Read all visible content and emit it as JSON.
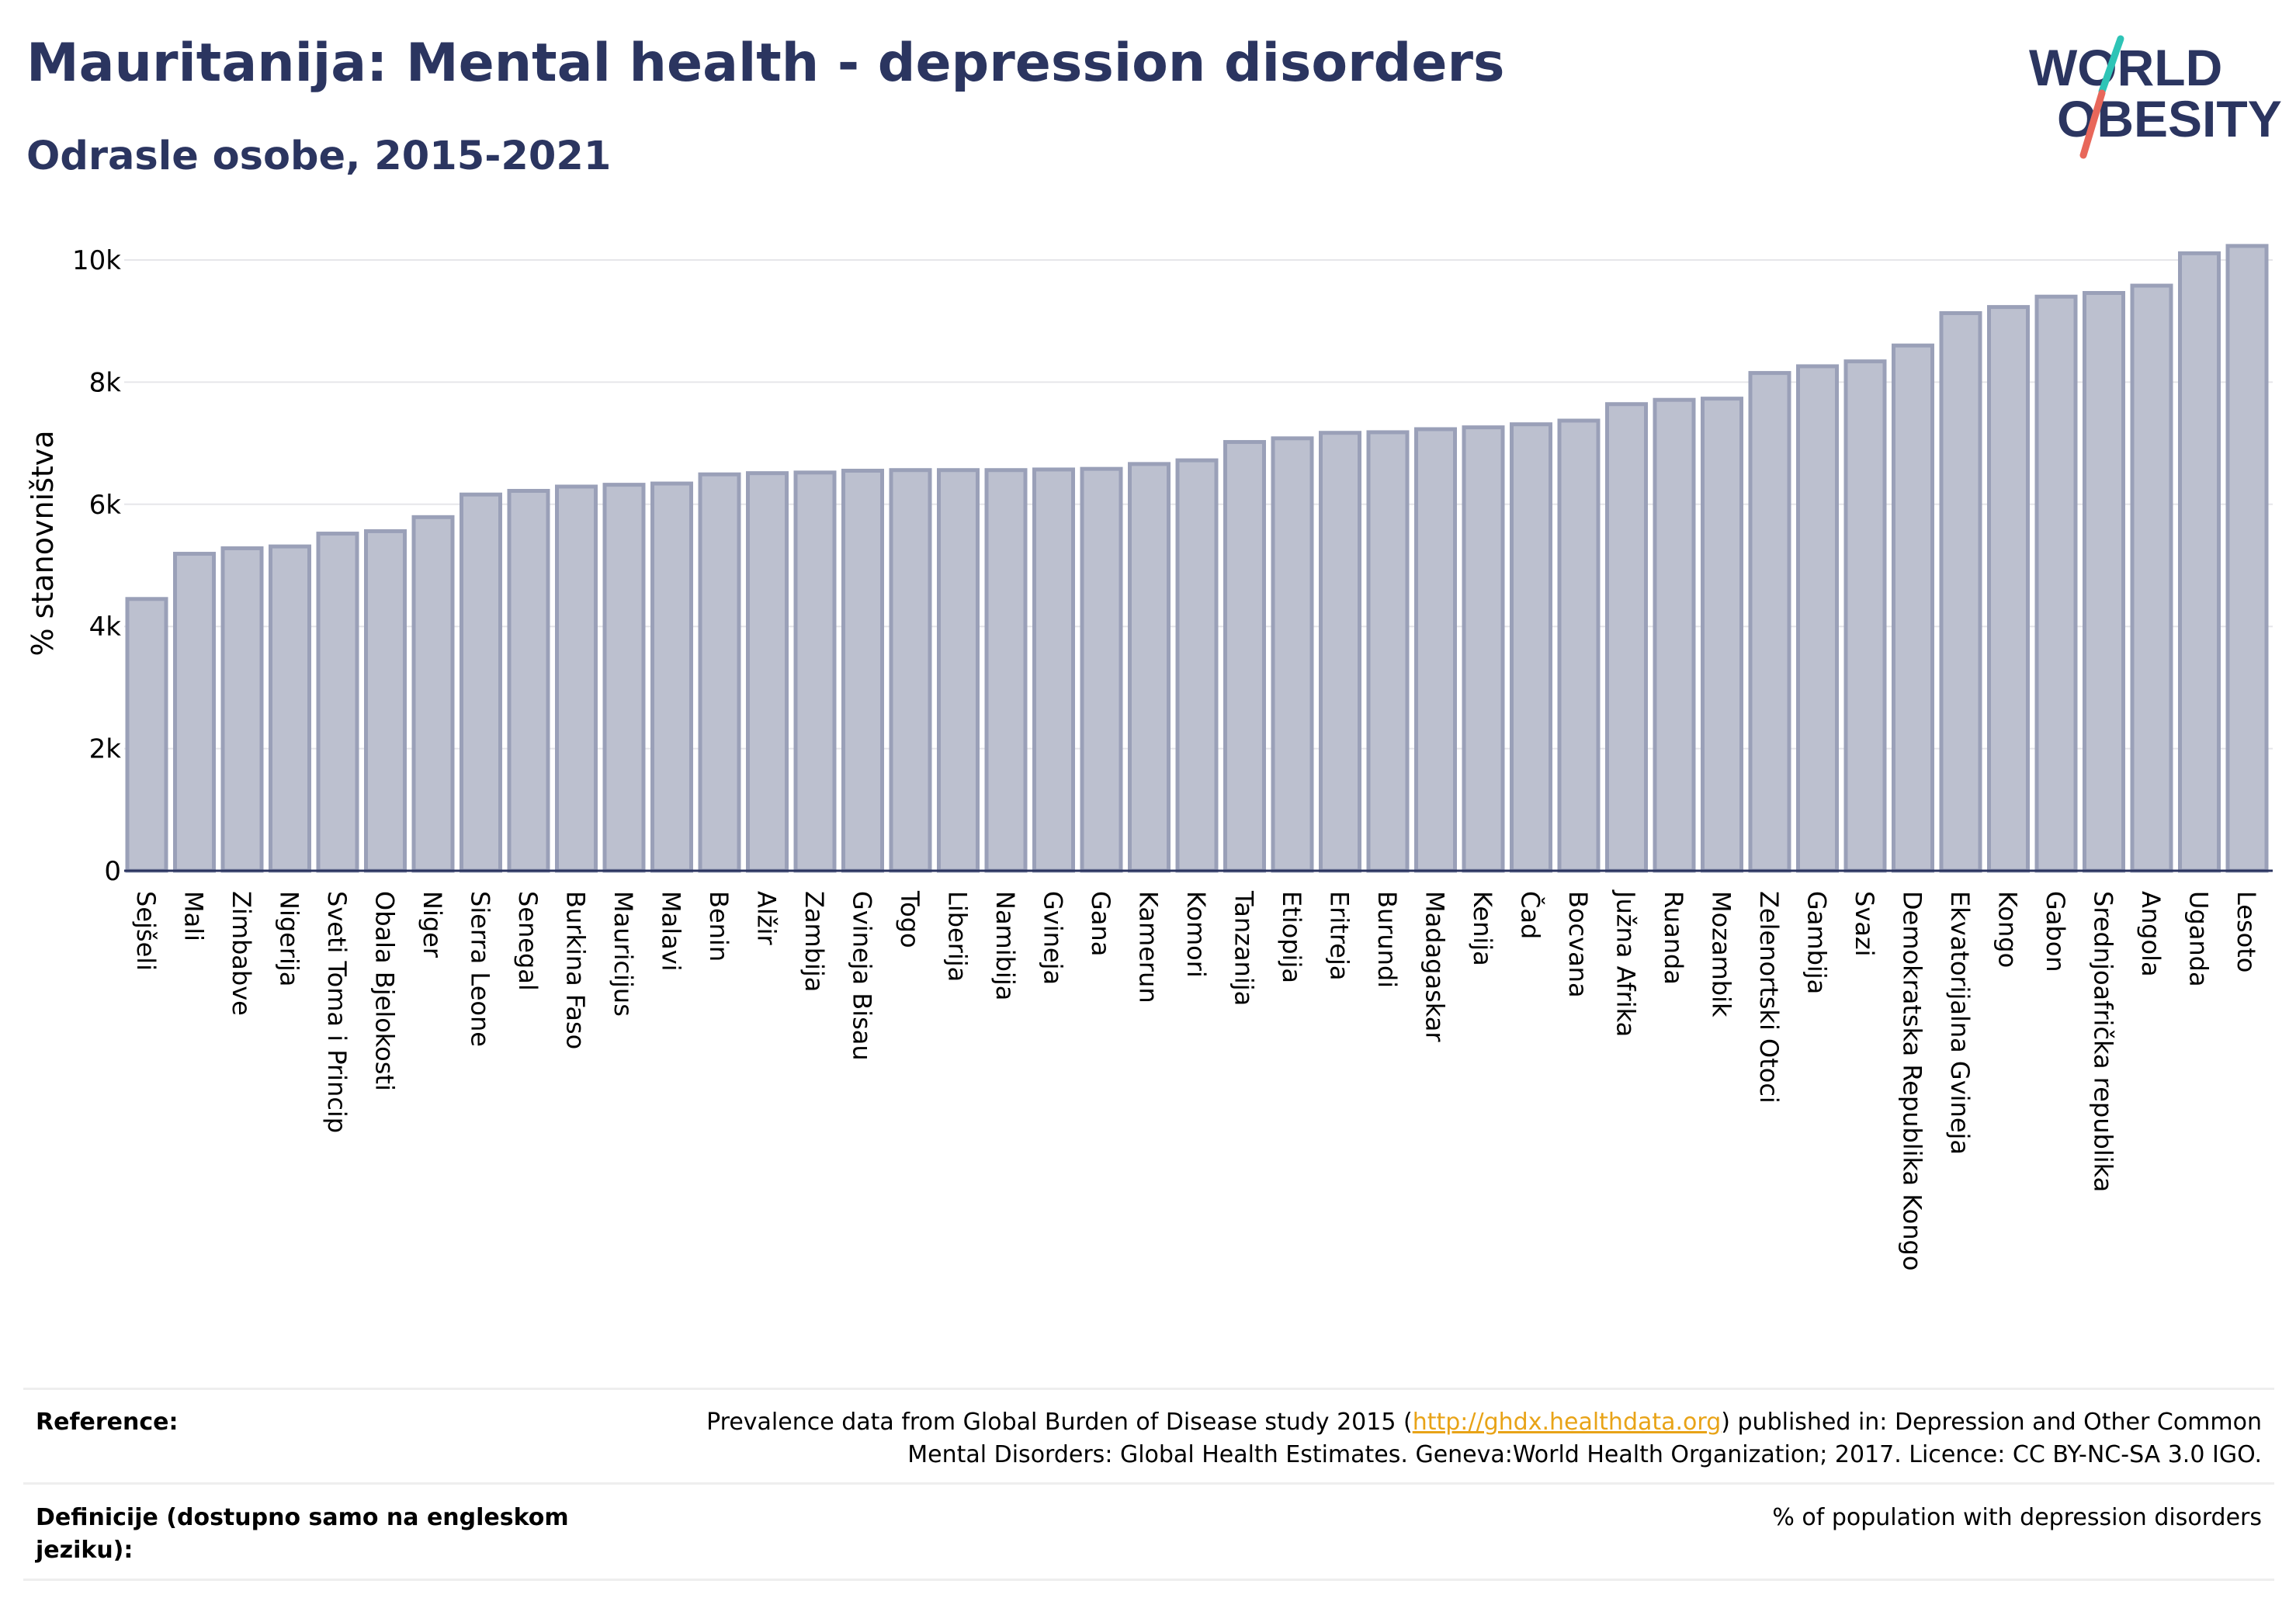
{
  "header": {
    "title": "Mauritanija: Mental health - depression disorders",
    "subtitle": "Odrasle osobe, 2015-2021"
  },
  "logo": {
    "line1": "WORLD",
    "line2": "OBESITY"
  },
  "chart_data": {
    "type": "bar",
    "ylabel": "% stanovništva",
    "ylim": [
      0,
      10300
    ],
    "yticks": [
      0,
      2000,
      4000,
      6000,
      8000,
      10000
    ],
    "ytick_labels": [
      "0",
      "2k",
      "4k",
      "6k",
      "8k",
      "10k"
    ],
    "grid": true,
    "bar_color": "#bcc0cf",
    "bar_edge_color": "#9aa0b8",
    "categories": [
      "Sejšeli",
      "Mali",
      "Zimbabve",
      "Nigerija",
      "Sveti Toma i Princip",
      "Obala Bjelokosti",
      "Niger",
      "Sierra Leone",
      "Senegal",
      "Burkina Faso",
      "Mauricijus",
      "Malavi",
      "Benin",
      "Alžir",
      "Zambija",
      "Gvineja Bisau",
      "Togo",
      "Liberija",
      "Namibija",
      "Gvineja",
      "Gana",
      "Kamerun",
      "Komori",
      "Tanzanija",
      "Etiopija",
      "Eritreja",
      "Burundi",
      "Madagaskar",
      "Kenija",
      "Čad",
      "Bocvana",
      "Južna Afrika",
      "Ruanda",
      "Mozambik",
      "Zelenortski Otoci",
      "Gambija",
      "Svazi",
      "Demokratska Republika Kongo",
      "Ekvatorijalna Gvineja",
      "Kongo",
      "Gabon",
      "Srednjoafrička republika",
      "Angola",
      "Uganda",
      "Lesoto"
    ],
    "values": [
      4450,
      5190,
      5280,
      5310,
      5520,
      5560,
      5790,
      6160,
      6220,
      6290,
      6320,
      6340,
      6490,
      6510,
      6520,
      6550,
      6560,
      6560,
      6560,
      6570,
      6580,
      6660,
      6720,
      7020,
      7080,
      7170,
      7180,
      7230,
      7260,
      7310,
      7370,
      7640,
      7710,
      7730,
      8150,
      8260,
      8340,
      8600,
      9130,
      9230,
      9400,
      9460,
      9580,
      10110,
      10230
    ]
  },
  "footer": {
    "reference_label": "Reference:",
    "reference_text_before": "Prevalence data from Global Burden of Disease study 2015 (",
    "reference_link": "http://ghdx.healthdata.org",
    "reference_text_after": ") published in: Depression and Other Common",
    "reference_text_line2": "Mental Disorders: Global Health Estimates. Geneva:World Health Organization; 2017. Licence: CC BY-NC-SA 3.0 IGO.",
    "definition_label_line1": "Definicije (dostupno samo na engleskom",
    "definition_label_line2": "jeziku):",
    "definition_text": "% of population with depression disorders"
  }
}
